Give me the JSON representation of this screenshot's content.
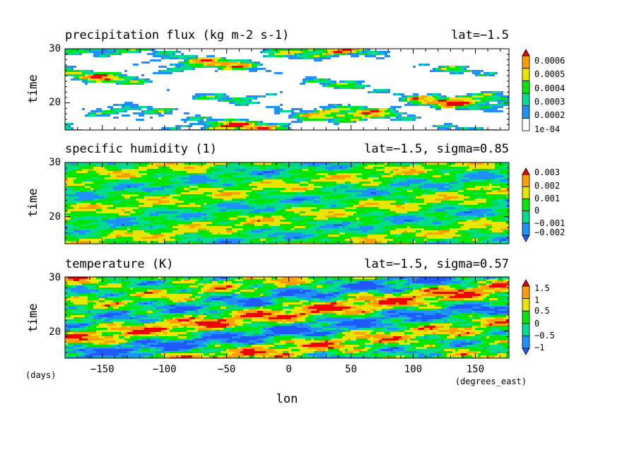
{
  "chart_data": [
    {
      "type": "heatmap",
      "title": "precipitation flux (kg m-2 s-1)",
      "subtitle": "lat=-1.5",
      "ylabel": "time",
      "xlim": [
        -180,
        177
      ],
      "ylim": [
        15,
        30
      ],
      "yticks": [
        20,
        30
      ],
      "colorbar": {
        "labels": [
          "0.0006",
          "0.0005",
          "0.0004",
          "0.0003",
          "0.0002",
          "1e-04"
        ],
        "levels": [
          0.0001,
          0.0002,
          0.0003,
          0.0004,
          0.0005,
          0.0006
        ],
        "colors": [
          "#ffffff",
          "#1e90ff",
          "#00dc8c",
          "#00e600",
          "#e8e600",
          "#ffa000",
          "#f00000"
        ],
        "low_arrow": false,
        "high_arrow": true
      }
    },
    {
      "type": "heatmap",
      "title": "specific humidity (1)",
      "subtitle": "lat=-1.5, sigma=0.85",
      "ylabel": "time",
      "xlim": [
        -180,
        177
      ],
      "ylim": [
        15,
        30
      ],
      "yticks": [
        20,
        30
      ],
      "colorbar": {
        "labels": [
          "0.003",
          "0.002",
          "0.001",
          "0",
          "-0.001",
          "-0.002"
        ],
        "levels": [
          -0.002,
          -0.001,
          0,
          0.001,
          0.002,
          0.003
        ],
        "colors": [
          "#1e5aff",
          "#1e90ff",
          "#00dc8c",
          "#00e600",
          "#e8e600",
          "#ffa000",
          "#f00000"
        ],
        "low_arrow": true,
        "high_arrow": true
      }
    },
    {
      "type": "heatmap",
      "title": "temperature (K)",
      "subtitle": "lat=-1.5, sigma=0.57",
      "ylabel": "time",
      "xlabel": "lon",
      "x_unit": "(degrees_east)",
      "y_unit": "(days)",
      "xlim": [
        -180,
        177
      ],
      "ylim": [
        15,
        30
      ],
      "xticks": [
        -150,
        -100,
        -50,
        0,
        50,
        100,
        150
      ],
      "xtick_labels": [
        "-150",
        "-100",
        "-50",
        "0",
        "50",
        "100",
        "150"
      ],
      "yticks": [
        20,
        30
      ],
      "colorbar": {
        "labels": [
          "1.5",
          "1",
          "0.5",
          "0",
          "-0.5",
          "-1"
        ],
        "levels": [
          -1,
          -0.5,
          0,
          0.5,
          1,
          1.5
        ],
        "colors": [
          "#1e5aff",
          "#1e90ff",
          "#00dc8c",
          "#00e600",
          "#e8e600",
          "#ffa000",
          "#f00000"
        ],
        "low_arrow": true,
        "high_arrow": true
      }
    }
  ]
}
